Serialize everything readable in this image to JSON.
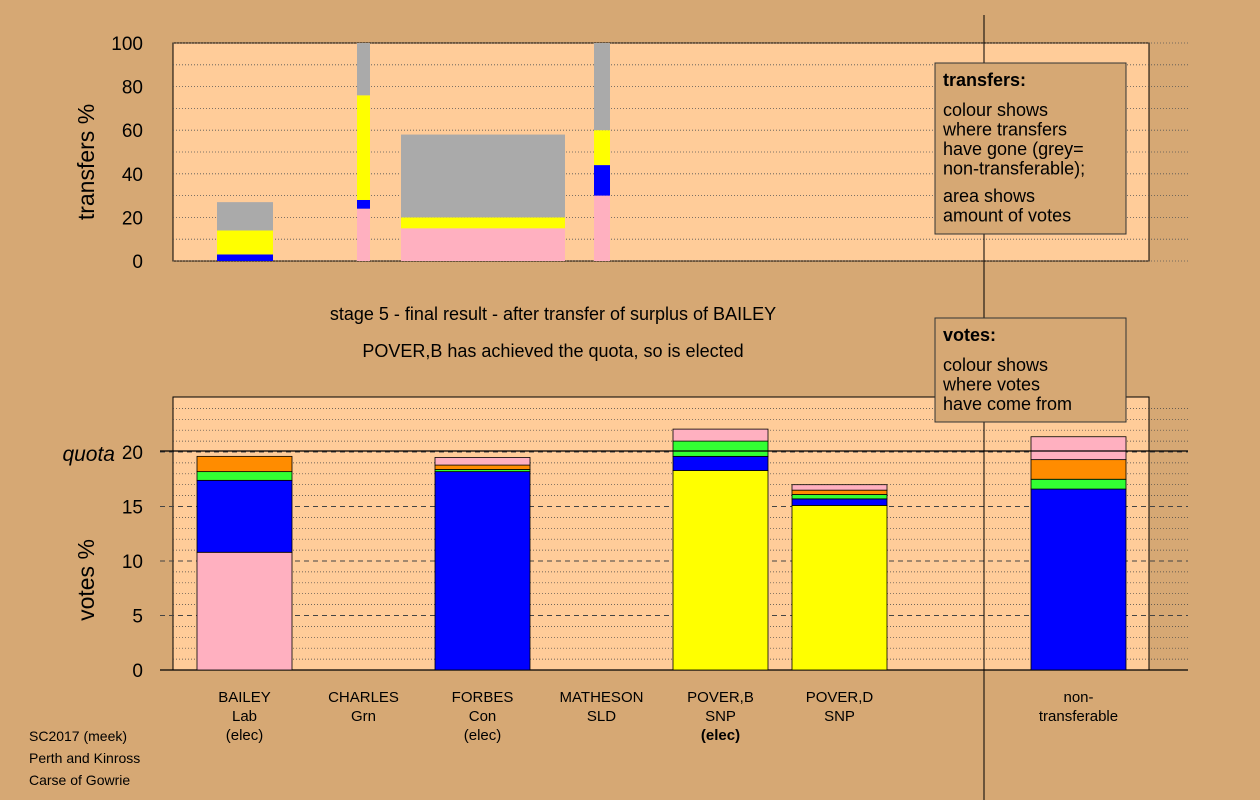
{
  "colors": {
    "background": "#d6a874",
    "plot_bg": "#ffcc99",
    "pink": "#ffb0c0",
    "blue": "#0000ff",
    "green": "#33ff33",
    "orange": "#ff8c00",
    "yellow": "#ffff00",
    "grey": "#aaaaaa"
  },
  "headings": {
    "stage": "stage 5 - final result - after transfer of surplus of BAILEY",
    "elected": "POVER,B has achieved the quota, so is elected"
  },
  "legends": {
    "transfers": {
      "title": "transfers:",
      "lines": [
        "colour shows",
        "where transfers",
        "have gone (grey=",
        "non-transferable);"
      ],
      "lines2": [
        "area shows",
        "amount of votes"
      ]
    },
    "votes": {
      "title": "votes:",
      "lines": [
        "colour shows",
        "where votes",
        "have come from"
      ]
    }
  },
  "footer": [
    "SC2017 (meek)",
    "Perth and Kinross",
    "Carse of Gowrie"
  ],
  "chart_data": [
    {
      "type": "bar",
      "name": "transfers",
      "ylabel": "transfers %",
      "ylim": [
        0,
        100
      ],
      "yticks": [
        0,
        20,
        40,
        60,
        80,
        100
      ],
      "note": "stacked bars with variable width (area shows amount of votes)",
      "bars": [
        {
          "segments": [
            {
              "color": "blue",
              "from": 0,
              "to": 3
            },
            {
              "color": "yellow",
              "from": 3,
              "to": 14
            },
            {
              "color": "grey",
              "from": 14,
              "to": 27
            }
          ]
        },
        {
          "segments": [
            {
              "color": "pink",
              "from": 0,
              "to": 24
            },
            {
              "color": "blue",
              "from": 24,
              "to": 28
            },
            {
              "color": "yellow",
              "from": 28,
              "to": 76
            },
            {
              "color": "grey",
              "from": 76,
              "to": 100
            }
          ]
        },
        {
          "segments": [
            {
              "color": "pink",
              "from": 0,
              "to": 15
            },
            {
              "color": "yellow",
              "from": 15,
              "to": 20
            },
            {
              "color": "grey",
              "from": 20,
              "to": 58
            }
          ]
        },
        {
          "segments": [
            {
              "color": "pink",
              "from": 0,
              "to": 30
            },
            {
              "color": "blue",
              "from": 30,
              "to": 44
            },
            {
              "color": "yellow",
              "from": 44,
              "to": 60
            },
            {
              "color": "grey",
              "from": 60,
              "to": 100
            }
          ]
        }
      ]
    },
    {
      "type": "bar",
      "name": "votes",
      "ylabel": "votes %",
      "quota_label": "quota",
      "quota": 20,
      "ylim": [
        0,
        25
      ],
      "yticks": [
        0,
        5,
        10,
        15,
        20
      ],
      "categories": [
        {
          "lines": [
            "BAILEY",
            "Lab",
            "(elec)"
          ],
          "bold_last": false
        },
        {
          "lines": [
            "CHARLES",
            "Grn"
          ],
          "bold_last": false
        },
        {
          "lines": [
            "FORBES",
            "Con",
            "(elec)"
          ],
          "bold_last": false
        },
        {
          "lines": [
            "MATHESON",
            "SLD"
          ],
          "bold_last": false
        },
        {
          "lines": [
            "POVER,B",
            "SNP",
            "(elec)"
          ],
          "bold_last": true
        },
        {
          "lines": [
            "POVER,D",
            "SNP"
          ],
          "bold_last": false
        },
        {
          "lines": [
            "non-",
            "transferable"
          ],
          "bold_last": false
        }
      ],
      "stacks": [
        [
          {
            "color": "pink",
            "value": 10.8
          },
          {
            "color": "blue",
            "value": 6.6
          },
          {
            "color": "green",
            "value": 0.8
          },
          {
            "color": "orange",
            "value": 1.4
          }
        ],
        [],
        [
          {
            "color": "blue",
            "value": 18.2
          },
          {
            "color": "green",
            "value": 0.2
          },
          {
            "color": "orange",
            "value": 0.4
          },
          {
            "color": "pink",
            "value": 0.7
          }
        ],
        [],
        [
          {
            "color": "yellow",
            "value": 18.3
          },
          {
            "color": "blue",
            "value": 1.3
          },
          {
            "color": "green",
            "value": 1.4
          },
          {
            "color": "pink",
            "value": 1.1
          }
        ],
        [
          {
            "color": "yellow",
            "value": 15.1
          },
          {
            "color": "blue",
            "value": 0.6
          },
          {
            "color": "green",
            "value": 0.4
          },
          {
            "color": "orange",
            "value": 0.4
          },
          {
            "color": "pink",
            "value": 0.5
          }
        ],
        [
          {
            "color": "blue",
            "value": 16.6
          },
          {
            "color": "green",
            "value": 0.9
          },
          {
            "color": "orange",
            "value": 1.8
          },
          {
            "color": "pink",
            "value": 2.1
          }
        ]
      ]
    }
  ]
}
